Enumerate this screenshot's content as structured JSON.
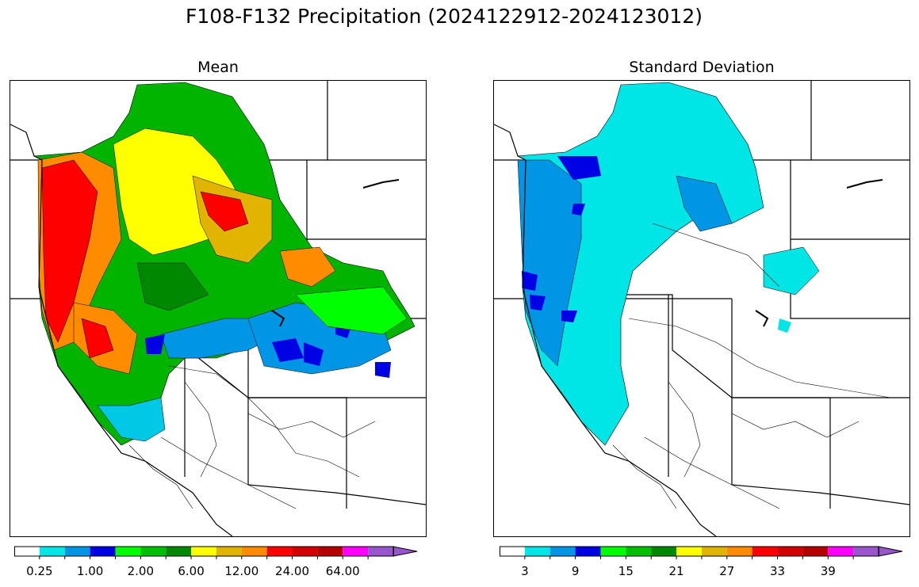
{
  "title": "F108-F132 Precipitation (2024122912-2024123012)",
  "panels": [
    {
      "id": "mean",
      "title": "Mean",
      "colorbar": {
        "colors": [
          "#ffffff",
          "#00e5e5",
          "#0096e5",
          "#0000e5",
          "#00ff00",
          "#00c000",
          "#008800",
          "#ffff00",
          "#e0b400",
          "#ff8c00",
          "#ff0000",
          "#d40000",
          "#b40000",
          "#ff00ff",
          "#9955cc"
        ],
        "tick_labels": [
          "0.25",
          "1.00",
          "2.00",
          "6.00",
          "12.00",
          "24.00",
          "64.00"
        ],
        "extend": "max"
      }
    },
    {
      "id": "stddev",
      "title": "Standard Deviation",
      "colorbar": {
        "colors": [
          "#ffffff",
          "#00e5e5",
          "#0096e5",
          "#0000e5",
          "#00ff00",
          "#00c000",
          "#008800",
          "#ffff00",
          "#e0b400",
          "#ff8c00",
          "#ff0000",
          "#d40000",
          "#b40000",
          "#ff00ff",
          "#9955cc"
        ],
        "tick_labels": [
          "3",
          "9",
          "15",
          "21",
          "27",
          "33",
          "39"
        ],
        "extend": "max"
      }
    }
  ]
}
